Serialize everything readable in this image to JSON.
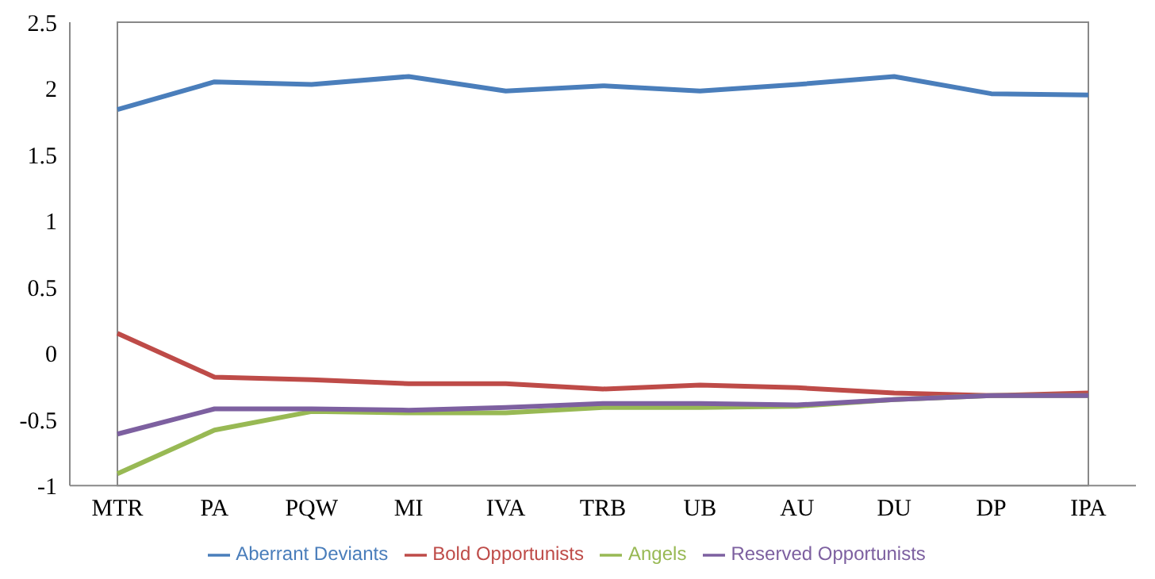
{
  "chart_data": {
    "type": "line",
    "categories": [
      "MTR",
      "PA",
      "PQW",
      "MI",
      "IVA",
      "TRB",
      "UB",
      "AU",
      "DU",
      "DP",
      "IPA"
    ],
    "series": [
      {
        "name": "Aberrant Deviants",
        "color": "#4a7ebb",
        "values": [
          1.84,
          2.05,
          2.03,
          2.09,
          1.98,
          2.02,
          1.98,
          2.03,
          2.09,
          1.96,
          1.95
        ]
      },
      {
        "name": "Bold Opportunists",
        "color": "#be4b48",
        "values": [
          0.15,
          -0.18,
          -0.2,
          -0.23,
          -0.23,
          -0.27,
          -0.24,
          -0.26,
          -0.3,
          -0.32,
          -0.3
        ]
      },
      {
        "name": "Angels",
        "color": "#98b954",
        "values": [
          -0.91,
          -0.58,
          -0.44,
          -0.45,
          -0.45,
          -0.41,
          -0.41,
          -0.4,
          -0.35,
          -0.32,
          -0.32
        ]
      },
      {
        "name": "Reserved Opportunists",
        "color": "#7d60a0",
        "values": [
          -0.61,
          -0.42,
          -0.42,
          -0.43,
          -0.41,
          -0.38,
          -0.38,
          -0.39,
          -0.35,
          -0.32,
          -0.32
        ]
      }
    ],
    "ylim": [
      -1,
      2.5
    ],
    "yticks": [
      -1,
      -0.5,
      0,
      0.5,
      1,
      1.5,
      2,
      2.5
    ],
    "grid": false,
    "legend": "bottom",
    "marker": "none",
    "line_style": "solid"
  }
}
